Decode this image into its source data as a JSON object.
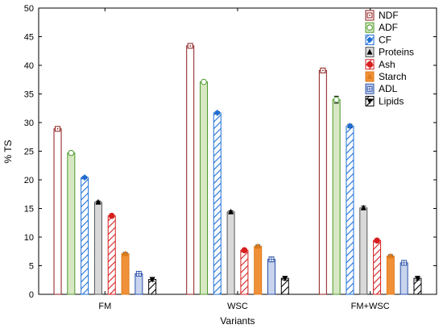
{
  "chart_data": {
    "type": "bar",
    "xlabel": "Variants",
    "ylabel": "% TS",
    "ylim": [
      0,
      50
    ],
    "yticks": [
      0,
      5,
      10,
      15,
      20,
      25,
      30,
      35,
      40,
      45,
      50
    ],
    "categories": [
      "FM",
      "WSC",
      "FM+WSC"
    ],
    "legend_position": "top-right",
    "grid": false,
    "series": [
      {
        "name": "NDF",
        "values": [
          28.9,
          43.4,
          39.1
        ],
        "errors": [
          0.3,
          0.3,
          0.3
        ],
        "color": "#8b1a1a",
        "fill": "#ffffff",
        "pattern": "none",
        "marker": "square-dot"
      },
      {
        "name": "ADF",
        "values": [
          24.7,
          37.1,
          34.0
        ],
        "errors": [
          0.3,
          0.2,
          0.6
        ],
        "color": "#4a9a2a",
        "fill": "#d8e8c4",
        "pattern": "none",
        "marker": "circle"
      },
      {
        "name": "CF",
        "values": [
          20.4,
          31.7,
          29.4
        ],
        "errors": [
          0.2,
          0.2,
          0.3
        ],
        "color": "#1f6fd6",
        "fill": "#ffffff",
        "pattern": "hatch",
        "marker": "diamond"
      },
      {
        "name": "Proteins",
        "values": [
          16.1,
          14.4,
          15.1
        ],
        "errors": [
          0.2,
          0.2,
          0.3
        ],
        "color": "#555555",
        "fill": "#d9d9d9",
        "pattern": "none",
        "marker": "triangle"
      },
      {
        "name": "Ash",
        "values": [
          13.7,
          7.7,
          9.4
        ],
        "errors": [
          0.2,
          0.2,
          0.2
        ],
        "color": "#d61f1f",
        "fill": "#ffffff",
        "pattern": "hatch",
        "marker": "circle-filled"
      },
      {
        "name": "Starch",
        "values": [
          7.1,
          8.4,
          6.7
        ],
        "errors": [
          0.2,
          0.2,
          0.2
        ],
        "color": "#e07b1a",
        "fill": "#f0913a",
        "pattern": "none",
        "marker": "triangle-up"
      },
      {
        "name": "ADL",
        "values": [
          3.6,
          6.1,
          5.5
        ],
        "errors": [
          0.3,
          0.4,
          0.3
        ],
        "color": "#2a4fa8",
        "fill": "#c8d4ee",
        "pattern": "none",
        "marker": "square-cross"
      },
      {
        "name": "Lipids",
        "values": [
          2.6,
          2.8,
          2.8
        ],
        "errors": [
          0.3,
          0.3,
          0.3
        ],
        "color": "#000000",
        "fill": "#ffffff",
        "pattern": "hatch",
        "marker": "triangle-down"
      }
    ]
  }
}
